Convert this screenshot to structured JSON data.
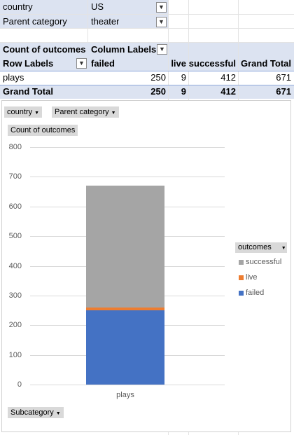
{
  "filters": {
    "country": {
      "label": "country",
      "value": "US"
    },
    "parent_category": {
      "label": "Parent category",
      "value": "theater"
    }
  },
  "pivot": {
    "value_header": "Count of outcomes",
    "column_labels": "Column Labels",
    "row_labels": "Row Labels",
    "columns": [
      "failed",
      "live",
      "successful",
      "Grand Total"
    ],
    "rows": [
      {
        "label": "plays",
        "values": [
          "250",
          "9",
          "412",
          "671"
        ]
      }
    ],
    "grand_total": {
      "label": "Grand Total",
      "values": [
        "250",
        "9",
        "412",
        "671"
      ]
    }
  },
  "chart_buttons": {
    "country": "country",
    "parent_category": "Parent category",
    "value_field": "Count of outcomes",
    "subcategory": "Subcategory",
    "legend_field": "outcomes"
  },
  "chart_data": {
    "type": "bar",
    "stacked": true,
    "categories": [
      "plays"
    ],
    "series": [
      {
        "name": "failed",
        "values": [
          250
        ],
        "color": "#4472c4"
      },
      {
        "name": "live",
        "values": [
          9
        ],
        "color": "#ed7d31"
      },
      {
        "name": "successful",
        "values": [
          412
        ],
        "color": "#a5a5a5"
      }
    ],
    "legend_order": [
      "successful",
      "live",
      "failed"
    ],
    "yticks": [
      "0",
      "100",
      "200",
      "300",
      "400",
      "500",
      "600",
      "700",
      "800"
    ],
    "ylim": [
      0,
      800
    ],
    "grid": true,
    "legend_position": "right"
  }
}
